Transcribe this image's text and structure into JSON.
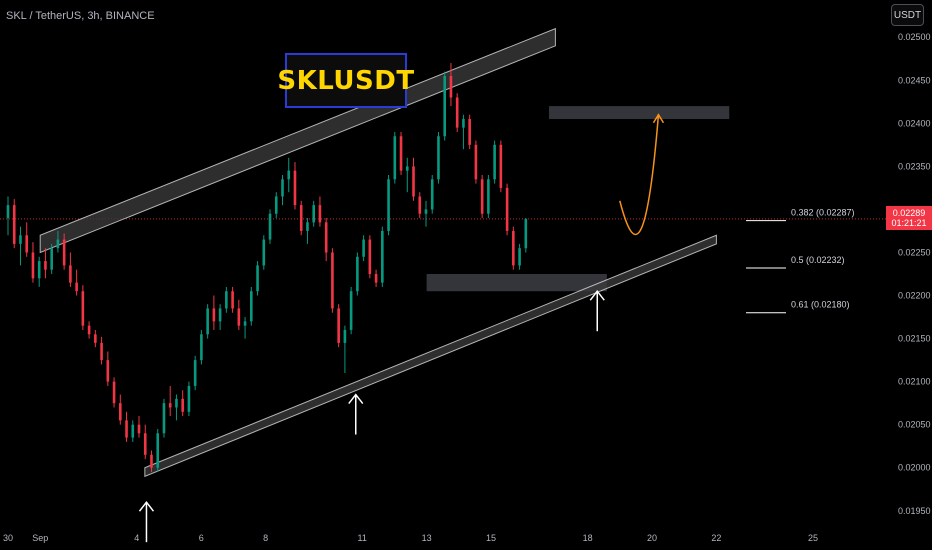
{
  "header": {
    "symbol_line": "SKL / TetherUS, 3h, BINANCE",
    "currency_button": "USDT"
  },
  "title_box": "SKLUSDT",
  "last_price": {
    "value": "0.02289",
    "countdown": "01:21:21"
  },
  "fib_levels": [
    {
      "label": "0.382 (0.02287)",
      "price": 0.02287
    },
    {
      "label": "0.5 (0.02232)",
      "price": 0.02232
    },
    {
      "label": "0.61 (0.02180)",
      "price": 0.0218
    }
  ],
  "colors": {
    "background": "#000000",
    "up": "#089981",
    "down": "#f23645",
    "channel": "#e0e0e0",
    "projection": "#f7931a",
    "zone": "#5d606b"
  },
  "chart_data": {
    "type": "candlestick",
    "ylim": [
      0.0193,
      0.0252
    ],
    "y_ticks": [
      "0.02500",
      "0.02450",
      "0.02400",
      "0.02350",
      "0.02300",
      "0.02250",
      "0.02200",
      "0.02150",
      "0.02100",
      "0.02050",
      "0.02000",
      "0.01950"
    ],
    "x_ticks": [
      "30",
      "Sep",
      "4",
      "6",
      "8",
      "11",
      "13",
      "15",
      "18",
      "20",
      "22",
      "25"
    ],
    "x_tick_days": [
      0,
      1,
      4,
      6,
      8,
      11,
      13,
      15,
      18,
      20,
      22,
      25
    ],
    "candle_step_days": 0.125,
    "candles_start_day": 0,
    "candles": [
      [
        0.0229,
        0.02315,
        0.0227,
        0.02305
      ],
      [
        0.02305,
        0.02312,
        0.02255,
        0.0226
      ],
      [
        0.0226,
        0.0228,
        0.02235,
        0.0227
      ],
      [
        0.0227,
        0.02285,
        0.02245,
        0.0225
      ],
      [
        0.0225,
        0.02262,
        0.02215,
        0.0222
      ],
      [
        0.0222,
        0.02245,
        0.0221,
        0.0224
      ],
      [
        0.0224,
        0.02255,
        0.0222,
        0.0223
      ],
      [
        0.0223,
        0.0226,
        0.02225,
        0.02255
      ],
      [
        0.02255,
        0.02275,
        0.0225,
        0.02265
      ],
      [
        0.02265,
        0.02272,
        0.0223,
        0.02235
      ],
      [
        0.02235,
        0.0225,
        0.0221,
        0.02215
      ],
      [
        0.02215,
        0.0223,
        0.022,
        0.02205
      ],
      [
        0.02205,
        0.02212,
        0.0216,
        0.02165
      ],
      [
        0.02165,
        0.0217,
        0.0215,
        0.02155
      ],
      [
        0.02155,
        0.0216,
        0.0214,
        0.02145
      ],
      [
        0.02145,
        0.02152,
        0.0212,
        0.02125
      ],
      [
        0.02125,
        0.02135,
        0.02095,
        0.021
      ],
      [
        0.021,
        0.02105,
        0.0207,
        0.02075
      ],
      [
        0.02075,
        0.02085,
        0.0205,
        0.02055
      ],
      [
        0.02055,
        0.02065,
        0.0203,
        0.02035
      ],
      [
        0.02035,
        0.02055,
        0.0203,
        0.0205
      ],
      [
        0.0205,
        0.0206,
        0.02035,
        0.0204
      ],
      [
        0.0204,
        0.0205,
        0.0201,
        0.02015
      ],
      [
        0.02015,
        0.0202,
        0.01995,
        0.02
      ],
      [
        0.02,
        0.02045,
        0.01995,
        0.0204
      ],
      [
        0.0204,
        0.0208,
        0.02035,
        0.02075
      ],
      [
        0.02075,
        0.02095,
        0.0206,
        0.0207
      ],
      [
        0.0207,
        0.02085,
        0.02055,
        0.0208
      ],
      [
        0.0208,
        0.0209,
        0.0206,
        0.02065
      ],
      [
        0.02065,
        0.021,
        0.0206,
        0.02095
      ],
      [
        0.02095,
        0.0213,
        0.0209,
        0.02125
      ],
      [
        0.02125,
        0.0216,
        0.0212,
        0.02155
      ],
      [
        0.02155,
        0.0219,
        0.0215,
        0.02185
      ],
      [
        0.02185,
        0.022,
        0.0216,
        0.0217
      ],
      [
        0.0217,
        0.0219,
        0.0216,
        0.02185
      ],
      [
        0.02185,
        0.0221,
        0.0218,
        0.02205
      ],
      [
        0.02205,
        0.0221,
        0.0218,
        0.02185
      ],
      [
        0.02185,
        0.02195,
        0.0216,
        0.02165
      ],
      [
        0.02165,
        0.02175,
        0.0215,
        0.0217
      ],
      [
        0.0217,
        0.0221,
        0.02165,
        0.02205
      ],
      [
        0.02205,
        0.0224,
        0.022,
        0.02235
      ],
      [
        0.02235,
        0.0227,
        0.0223,
        0.02265
      ],
      [
        0.02265,
        0.023,
        0.0226,
        0.02295
      ],
      [
        0.02295,
        0.0232,
        0.0229,
        0.02315
      ],
      [
        0.02315,
        0.0234,
        0.02305,
        0.02335
      ],
      [
        0.02335,
        0.0236,
        0.0232,
        0.02345
      ],
      [
        0.02345,
        0.02355,
        0.023,
        0.02305
      ],
      [
        0.02305,
        0.0231,
        0.0227,
        0.02275
      ],
      [
        0.02275,
        0.0229,
        0.0226,
        0.02285
      ],
      [
        0.02285,
        0.0231,
        0.0228,
        0.02305
      ],
      [
        0.02305,
        0.02315,
        0.0228,
        0.02285
      ],
      [
        0.02285,
        0.0229,
        0.0224,
        0.0225
      ],
      [
        0.0225,
        0.02255,
        0.0218,
        0.02185
      ],
      [
        0.02185,
        0.0219,
        0.0214,
        0.02145
      ],
      [
        0.02145,
        0.02165,
        0.0211,
        0.0216
      ],
      [
        0.0216,
        0.0221,
        0.02155,
        0.02205
      ],
      [
        0.02205,
        0.0225,
        0.022,
        0.02245
      ],
      [
        0.02245,
        0.0227,
        0.0224,
        0.02265
      ],
      [
        0.02265,
        0.0227,
        0.0222,
        0.02225
      ],
      [
        0.02225,
        0.0223,
        0.0221,
        0.02215
      ],
      [
        0.02215,
        0.0228,
        0.0221,
        0.02275
      ],
      [
        0.02275,
        0.0234,
        0.0227,
        0.02335
      ],
      [
        0.02335,
        0.0239,
        0.0233,
        0.02385
      ],
      [
        0.02385,
        0.0239,
        0.0234,
        0.02345
      ],
      [
        0.02345,
        0.0236,
        0.0232,
        0.0235
      ],
      [
        0.0235,
        0.0236,
        0.0231,
        0.02315
      ],
      [
        0.02315,
        0.0232,
        0.0229,
        0.02295
      ],
      [
        0.02295,
        0.0231,
        0.0228,
        0.023
      ],
      [
        0.023,
        0.0234,
        0.02295,
        0.02335
      ],
      [
        0.02335,
        0.0239,
        0.0233,
        0.02385
      ],
      [
        0.02385,
        0.0246,
        0.0238,
        0.02455
      ],
      [
        0.02455,
        0.0247,
        0.0242,
        0.0243
      ],
      [
        0.0243,
        0.02435,
        0.0239,
        0.02395
      ],
      [
        0.02395,
        0.0241,
        0.0237,
        0.02405
      ],
      [
        0.02405,
        0.0241,
        0.0237,
        0.02375
      ],
      [
        0.02375,
        0.0238,
        0.0233,
        0.02335
      ],
      [
        0.02335,
        0.0234,
        0.0229,
        0.02295
      ],
      [
        0.02295,
        0.0234,
        0.0229,
        0.02335
      ],
      [
        0.02335,
        0.0238,
        0.0233,
        0.02375
      ],
      [
        0.02375,
        0.0238,
        0.0232,
        0.02325
      ],
      [
        0.02325,
        0.0233,
        0.0227,
        0.02275
      ],
      [
        0.02275,
        0.0228,
        0.0223,
        0.02235
      ],
      [
        0.02235,
        0.0226,
        0.0223,
        0.02255
      ],
      [
        0.02255,
        0.0229,
        0.0225,
        0.02289
      ]
    ],
    "channel_upper": [
      [
        1,
        0.0225,
        0.0227
      ],
      [
        17,
        0.0249,
        0.0251
      ]
    ],
    "channel_lower": [
      [
        4.25,
        0.0199,
        0.02
      ],
      [
        22,
        0.0226,
        0.0227
      ]
    ],
    "zones": [
      {
        "x0": 16.8,
        "x1": 22.4,
        "y0": 0.02405,
        "y1": 0.0242
      },
      {
        "x0": 13.0,
        "x1": 18.6,
        "y0": 0.02205,
        "y1": 0.02225
      }
    ],
    "projection": [
      [
        19.0,
        0.0231
      ],
      [
        19.45,
        0.02245
      ],
      [
        19.85,
        0.0225
      ],
      [
        20.2,
        0.0241
      ]
    ],
    "arrows": [
      [
        4.3,
        0.0196
      ],
      [
        10.8,
        0.02085
      ],
      [
        18.3,
        0.02205
      ]
    ],
    "extra_hlines": [
      0.02289
    ]
  }
}
